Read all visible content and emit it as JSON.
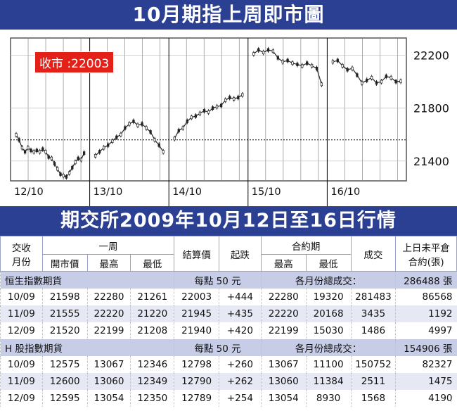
{
  "title": "10月期指上周即市圖",
  "price_badge": "收市 :22003",
  "chart_data": {
    "type": "candlestick",
    "title": "10月期指上周即市圖",
    "x_tick_labels": [
      "12/10",
      "13/10",
      "14/10",
      "15/10",
      "16/10"
    ],
    "y_tick_labels": [
      "22200",
      "21800",
      "21400"
    ],
    "ylim": [
      21250,
      22330
    ],
    "reference_line": 21560,
    "sessions": [
      {
        "date": "12/10",
        "series": [
          21598,
          21560,
          21500,
          21470,
          21500,
          21480,
          21470,
          21480,
          21470,
          21490,
          21470,
          21430,
          21420,
          21380,
          21340,
          21300,
          21290,
          21280,
          21310,
          21350,
          21390,
          21420,
          21410,
          21460
        ]
      },
      {
        "date": "13/10",
        "series": [
          21440,
          21470,
          21500,
          21520,
          21550,
          21580,
          21600,
          21650,
          21680,
          21700,
          21670,
          21680,
          21650,
          21620,
          21560,
          21520,
          21470
        ]
      },
      {
        "date": "14/10",
        "series": [
          21570,
          21630,
          21650,
          21700,
          21730,
          21740,
          21760,
          21780,
          21770,
          21800,
          21810,
          21820,
          21860,
          21880,
          21870,
          21880,
          21900
        ]
      },
      {
        "date": "15/10",
        "series": [
          22210,
          22240,
          22220,
          22240,
          22230,
          22180,
          22150,
          22160,
          22140,
          22130,
          22120,
          22140,
          22120,
          22100,
          21980
        ]
      },
      {
        "date": "16/10",
        "series": [
          22150,
          22160,
          22120,
          22090,
          22100,
          22050,
          21990,
          22010,
          22030,
          21990,
          22000,
          22040,
          22030,
          22000,
          22003
        ]
      }
    ]
  },
  "title2": "期交所2009年10月12日至16日行情",
  "table": {
    "headers": {
      "month": "交收\n月份",
      "week": "一周",
      "open": "開市價",
      "high": "最高",
      "low": "最低",
      "settle": "結算價",
      "change": "起跌",
      "contract": "合約期",
      "c_high": "最高",
      "c_low": "最低",
      "volume": "成交",
      "oi": "上日未平倉\n合約(張)"
    },
    "sections": [
      {
        "name": "恒生指數期貨",
        "point": "每點 50 元",
        "total_label": "各月份總成交：",
        "total": "286488 張",
        "rows": [
          [
            "10/09",
            "21598",
            "22280",
            "21261",
            "22003",
            "+444",
            "22280",
            "19320",
            "281483",
            "86568"
          ],
          [
            "11/09",
            "21555",
            "22220",
            "21220",
            "21945",
            "+435",
            "22220",
            "20168",
            "3435",
            "1192"
          ],
          [
            "12/09",
            "21520",
            "22199",
            "21208",
            "21940",
            "+420",
            "22199",
            "15030",
            "1486",
            "4997"
          ]
        ]
      },
      {
        "name": "H 股指數期貨",
        "point": "每點 50 元",
        "total_label": "各月份總成交：",
        "total": "154906 張",
        "rows": [
          [
            "10/09",
            "12575",
            "13067",
            "12346",
            "12798",
            "+260",
            "13067",
            "11100",
            "150752",
            "82327"
          ],
          [
            "11/09",
            "12600",
            "13060",
            "12349",
            "12790",
            "+262",
            "13060",
            "11384",
            "2511",
            "1475"
          ],
          [
            "12/09",
            "12595",
            "13054",
            "12350",
            "12789",
            "+254",
            "13054",
            "8930",
            "1568",
            "4190"
          ]
        ]
      }
    ]
  }
}
